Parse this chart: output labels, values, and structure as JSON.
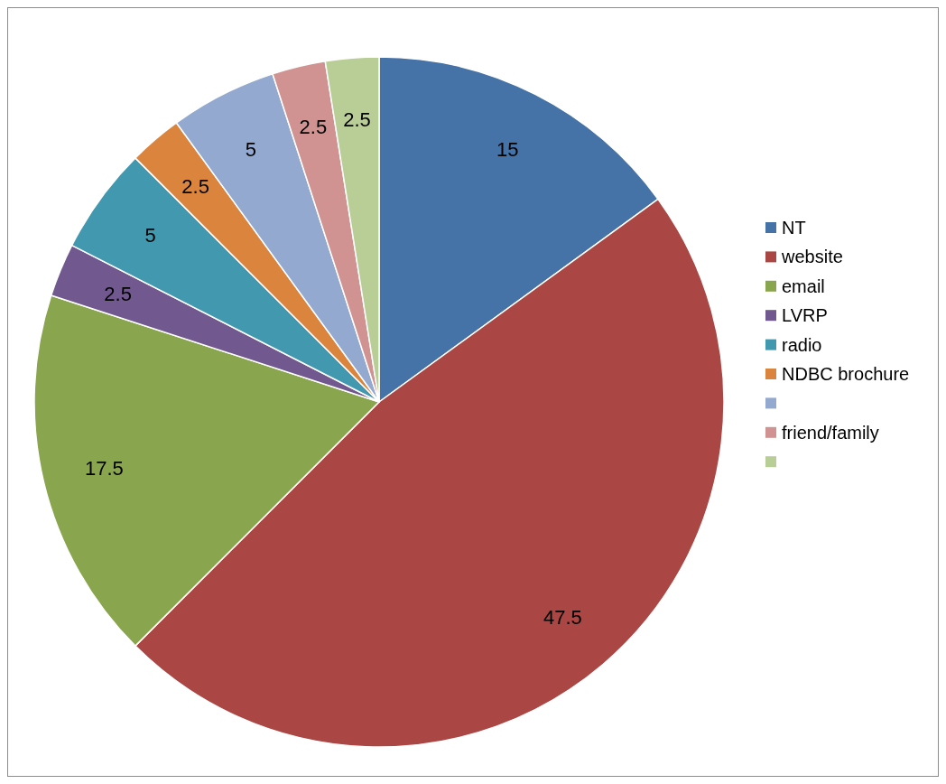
{
  "chart_data": {
    "type": "pie",
    "categories": [
      "NT",
      "website",
      "email",
      "LVRP",
      "radio",
      "NDBC brochure",
      null,
      "friend/family",
      null
    ],
    "values": [
      15,
      47.5,
      17.5,
      2.5,
      5,
      2.5,
      5,
      2.5,
      2.5
    ],
    "colors": [
      "#4572a7",
      "#aa4643",
      "#89a54e",
      "#71588f",
      "#4198af",
      "#db843d",
      "#93a9cf",
      "#d19392",
      "#b9cd96"
    ],
    "data_labels": true,
    "legend": "right"
  }
}
